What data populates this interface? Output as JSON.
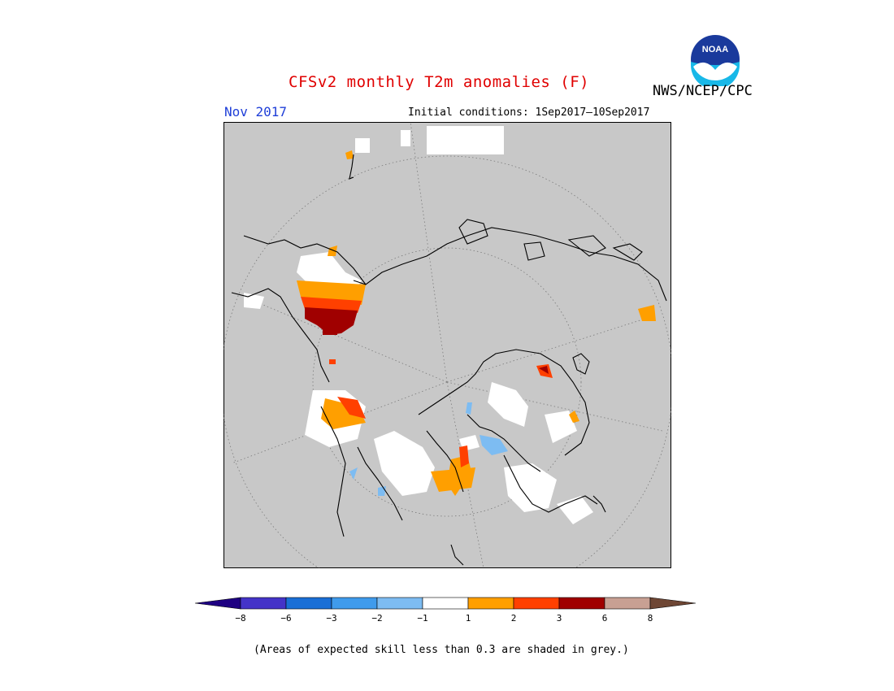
{
  "title": "CFSv2 monthly T2m anomalies (F)",
  "agency": "NWS/NCEP/CPC",
  "logo_text": "NOAA",
  "forecast_month": "Nov 2017",
  "initial_conditions": "Initial conditions: 1Sep2017—10Sep2017",
  "footnote": "(Areas of expected skill less than 0.3 are shaded in grey.)",
  "colors": {
    "title": "#e00000",
    "month": "#1f3fd8",
    "map_background": "#c8c8c8",
    "coastline": "#000000",
    "grid": "#7a7a7a"
  },
  "colorbar": {
    "low_extension_color": "#1e0082",
    "high_extension_color": "#6e4634",
    "bins": [
      {
        "color": "#4433c8"
      },
      {
        "color": "#1a6fd6"
      },
      {
        "color": "#3f9bec"
      },
      {
        "color": "#7dbcf2"
      },
      {
        "color": "#ffffff"
      },
      {
        "color": "#ff9f00"
      },
      {
        "color": "#ff4000"
      },
      {
        "color": "#a00000"
      },
      {
        "color": "#c8a093"
      }
    ],
    "tick_labels": [
      "−8",
      "−6",
      "−3",
      "−2",
      "−1",
      "1",
      "2",
      "3",
      "6",
      "8"
    ]
  }
}
